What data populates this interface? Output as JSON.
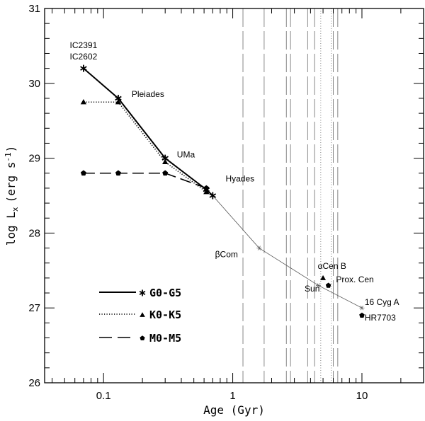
{
  "chart_data": {
    "type": "line",
    "xscale": "log",
    "xlim": [
      0.035,
      30
    ],
    "ylim": [
      26,
      31
    ],
    "xlabel": "Age (Gyr)",
    "ylabel": "log L",
    "ylabel_sub": "x",
    "ylabel_units": "(erg s",
    "ylabel_sup": "-1",
    "ylabel_close": ")",
    "x_ticks": [
      {
        "value": 0.1,
        "label": "0.1"
      },
      {
        "value": 1,
        "label": "1"
      },
      {
        "value": 10,
        "label": "10"
      }
    ],
    "y_ticks": [
      {
        "value": 26,
        "label": "26"
      },
      {
        "value": 27,
        "label": "27"
      },
      {
        "value": 28,
        "label": "28"
      },
      {
        "value": 29,
        "label": "29"
      },
      {
        "value": 30,
        "label": "30"
      },
      {
        "value": 31,
        "label": "31"
      }
    ],
    "series": [
      {
        "name": "G0-G5",
        "style": "solid",
        "marker": "star",
        "x": [
          0.07,
          0.13,
          0.3,
          0.625,
          0.7
        ],
        "y": [
          30.2,
          29.8,
          29.0,
          28.58,
          28.5
        ]
      },
      {
        "name": "K0-K5",
        "style": "dotted",
        "marker": "triangle",
        "x": [
          0.07,
          0.13,
          0.3,
          0.625
        ],
        "y": [
          29.75,
          29.75,
          28.95,
          28.55
        ]
      },
      {
        "name": "M0-M5",
        "style": "dashed",
        "marker": "pentagon",
        "x": [
          0.07,
          0.13,
          0.3,
          0.625
        ],
        "y": [
          28.8,
          28.8,
          28.8,
          28.6
        ]
      }
    ],
    "sun_track": {
      "x": [
        0.7,
        1.6,
        4.6,
        10.0
      ],
      "y": [
        28.5,
        27.8,
        27.3,
        27.0
      ]
    },
    "vertical_dashed_lines": [
      1.2,
      1.75,
      2.6,
      2.8,
      3.8,
      4.3,
      6.0,
      6.5
    ],
    "vertical_dotted_lines": [
      4.8,
      5.8
    ],
    "extra_points": [
      {
        "name": "alpha Cen B",
        "marker": "triangle",
        "x": 5.0,
        "y": 27.4
      },
      {
        "name": "Prox. Cen",
        "marker": "pentagon",
        "x": 5.5,
        "y": 27.3
      },
      {
        "name": "HR7703",
        "marker": "pentagon",
        "x": 10.0,
        "y": 26.9
      }
    ],
    "annotations": [
      {
        "id": "ic2391",
        "text": "IC2391",
        "x": 0.07,
        "y": 30.47
      },
      {
        "id": "ic2602",
        "text": "IC2602",
        "x": 0.07,
        "y": 30.32
      },
      {
        "id": "pleiades",
        "text": "Pleiades",
        "x": 0.165,
        "y": 29.82
      },
      {
        "id": "uma",
        "text": "UMa",
        "x": 0.37,
        "y": 29.01
      },
      {
        "id": "hyades",
        "text": "Hyades",
        "x": 0.88,
        "y": 28.69
      },
      {
        "id": "betacom",
        "text": "βCom",
        "x": 0.73,
        "y": 27.68
      },
      {
        "id": "sun",
        "text": "Sun",
        "x": 3.6,
        "y": 27.22
      },
      {
        "id": "alphacenb",
        "text": "αCen B",
        "x": 4.55,
        "y": 27.52
      },
      {
        "id": "proxcen",
        "text": "Prox. Cen",
        "x": 6.3,
        "y": 27.34
      },
      {
        "id": "cyg16a",
        "text": "16 Cyg A",
        "x": 10.5,
        "y": 27.04
      },
      {
        "id": "hr7703",
        "text": "HR7703",
        "x": 10.5,
        "y": 26.83
      }
    ],
    "legend": {
      "position": "bottom-left",
      "entries": [
        {
          "label": "G0-G5",
          "style": "solid",
          "marker": "star"
        },
        {
          "label": "K0-K5",
          "style": "dotted",
          "marker": "triangle"
        },
        {
          "label": "M0-M5",
          "style": "dashed",
          "marker": "pentagon"
        }
      ]
    }
  }
}
